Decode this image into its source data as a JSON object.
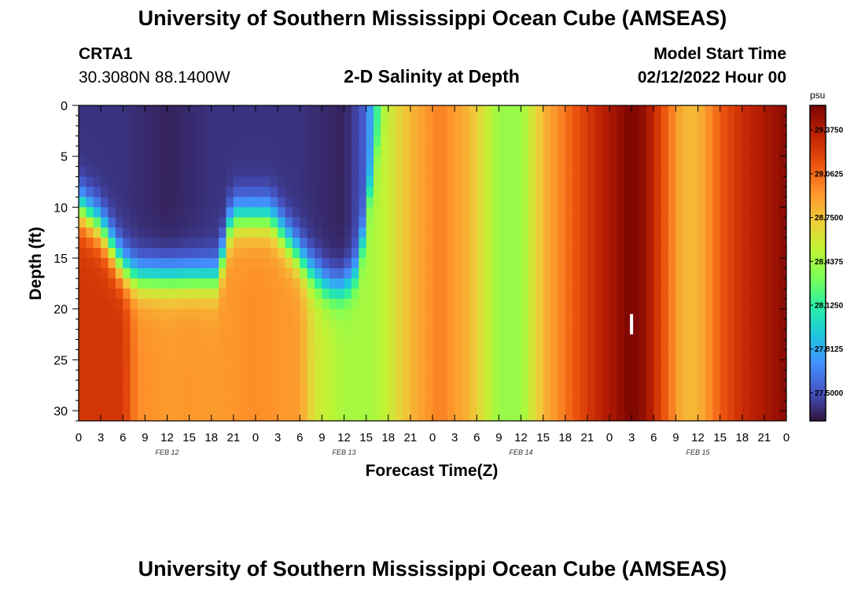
{
  "title": "University of Southern Mississippi Ocean Cube (AMSEAS)",
  "title_bottom": "University of Southern Mississippi Ocean Cube (AMSEAS)",
  "station": {
    "id": "CRTA1",
    "coords": "30.3080N  88.1400W"
  },
  "model": {
    "label": "Model Start Time",
    "start": "02/12/2022 Hour 00"
  },
  "chart_data": {
    "type": "heatmap",
    "title": "2-D Salinity at Depth",
    "xlabel": "Forecast Time(Z)",
    "ylabel": "Depth (ft)",
    "x_range_hours": [
      0,
      96
    ],
    "y_range_ft": [
      0,
      31
    ],
    "y_inverted": true,
    "x_tick_labels": [
      "0",
      "3",
      "6",
      "9",
      "12",
      "15",
      "18",
      "21",
      "0",
      "3",
      "6",
      "9",
      "12",
      "15",
      "18",
      "21",
      "0",
      "3",
      "6",
      "9",
      "12",
      "15",
      "18",
      "21",
      "0",
      "3",
      "6",
      "9",
      "12",
      "15",
      "18",
      "21",
      "0"
    ],
    "y_ticks": [
      0,
      5,
      10,
      15,
      20,
      25,
      30
    ],
    "date_labels": [
      {
        "text": "FEB 12",
        "hour": 12
      },
      {
        "text": "FEB 13",
        "hour": 36
      },
      {
        "text": "FEB 14",
        "hour": 60
      },
      {
        "text": "FEB 15",
        "hour": 84
      }
    ],
    "colorbar": {
      "unit": "psu",
      "range": [
        27.3,
        29.55
      ],
      "ticks": [
        "29.3750",
        "29.0625",
        "28.7500",
        "28.4375",
        "28.1250",
        "27.8125",
        "27.5000"
      ],
      "palette": [
        "#30123b",
        "#4454c4",
        "#4390fe",
        "#1fc8de",
        "#29efa2",
        "#7dff56",
        "#c1f334",
        "#f1ca3a",
        "#fe922a",
        "#ea4f0d",
        "#be2102",
        "#7a0403"
      ]
    },
    "surface_salinity_psu": [
      {
        "hour": 0,
        "value": 27.4
      },
      {
        "hour": 6,
        "value": 27.4
      },
      {
        "hour": 12,
        "value": 27.35
      },
      {
        "hour": 18,
        "value": 27.4
      },
      {
        "hour": 24,
        "value": 27.4
      },
      {
        "hour": 30,
        "value": 27.4
      },
      {
        "hour": 36,
        "value": 27.35
      },
      {
        "hour": 39,
        "value": 27.55
      },
      {
        "hour": 41,
        "value": 28.35
      },
      {
        "hour": 42,
        "value": 28.55
      },
      {
        "hour": 45,
        "value": 28.8
      },
      {
        "hour": 49,
        "value": 29.0
      },
      {
        "hour": 53,
        "value": 28.8
      },
      {
        "hour": 57,
        "value": 28.4
      },
      {
        "hour": 60,
        "value": 28.4
      },
      {
        "hour": 63,
        "value": 28.8
      },
      {
        "hour": 67,
        "value": 29.1
      },
      {
        "hour": 70,
        "value": 29.3
      },
      {
        "hour": 73,
        "value": 29.45
      },
      {
        "hour": 75,
        "value": 29.55
      },
      {
        "hour": 77,
        "value": 29.45
      },
      {
        "hour": 80,
        "value": 29.05
      },
      {
        "hour": 82,
        "value": 28.8
      },
      {
        "hour": 84,
        "value": 28.8
      },
      {
        "hour": 87,
        "value": 29.1
      },
      {
        "hour": 90,
        "value": 29.3
      },
      {
        "hour": 93,
        "value": 29.4
      },
      {
        "hour": 96,
        "value": 29.5
      }
    ],
    "bottom_salinity_psu": [
      {
        "hour": 0,
        "value": 29.25
      },
      {
        "hour": 6,
        "value": 29.25
      },
      {
        "hour": 8,
        "value": 28.95
      },
      {
        "hour": 12,
        "value": 28.9
      },
      {
        "hour": 15,
        "value": 28.92
      },
      {
        "hour": 18,
        "value": 28.9
      },
      {
        "hour": 24,
        "value": 28.95
      },
      {
        "hour": 30,
        "value": 28.9
      },
      {
        "hour": 32,
        "value": 28.6
      },
      {
        "hour": 36,
        "value": 28.45
      },
      {
        "hour": 40,
        "value": 28.45
      },
      {
        "hour": 42,
        "value": 28.55
      },
      {
        "hour": 45,
        "value": 28.8
      },
      {
        "hour": 49,
        "value": 29.0
      },
      {
        "hour": 53,
        "value": 28.8
      },
      {
        "hour": 57,
        "value": 28.4
      },
      {
        "hour": 60,
        "value": 28.4
      },
      {
        "hour": 63,
        "value": 28.8
      },
      {
        "hour": 67,
        "value": 29.1
      },
      {
        "hour": 70,
        "value": 29.3
      },
      {
        "hour": 73,
        "value": 29.45
      },
      {
        "hour": 75,
        "value": 29.55
      },
      {
        "hour": 77,
        "value": 29.45
      },
      {
        "hour": 80,
        "value": 29.05
      },
      {
        "hour": 82,
        "value": 28.8
      },
      {
        "hour": 84,
        "value": 28.8
      },
      {
        "hour": 87,
        "value": 29.1
      },
      {
        "hour": 90,
        "value": 29.3
      },
      {
        "hour": 93,
        "value": 29.4
      },
      {
        "hour": 96,
        "value": 29.5
      }
    ],
    "halocline_depth_ft": [
      {
        "hour": 0,
        "value": 10
      },
      {
        "hour": 3,
        "value": 12
      },
      {
        "hour": 6,
        "value": 16
      },
      {
        "hour": 8,
        "value": 17
      },
      {
        "hour": 19,
        "value": 17
      },
      {
        "hour": 20,
        "value": 13
      },
      {
        "hour": 21,
        "value": 11
      },
      {
        "hour": 26,
        "value": 11
      },
      {
        "hour": 27,
        "value": 12
      },
      {
        "hour": 31,
        "value": 16
      },
      {
        "hour": 34,
        "value": 18
      },
      {
        "hour": 36,
        "value": 18
      },
      {
        "hour": 38,
        "value": 16
      },
      {
        "hour": 40,
        "value": 6
      },
      {
        "hour": 42,
        "value": 0
      },
      {
        "hour": 96,
        "value": 0
      }
    ],
    "marker": {
      "hour": 75,
      "depth_from_ft": 20.5,
      "depth_to_ft": 22.5
    }
  }
}
